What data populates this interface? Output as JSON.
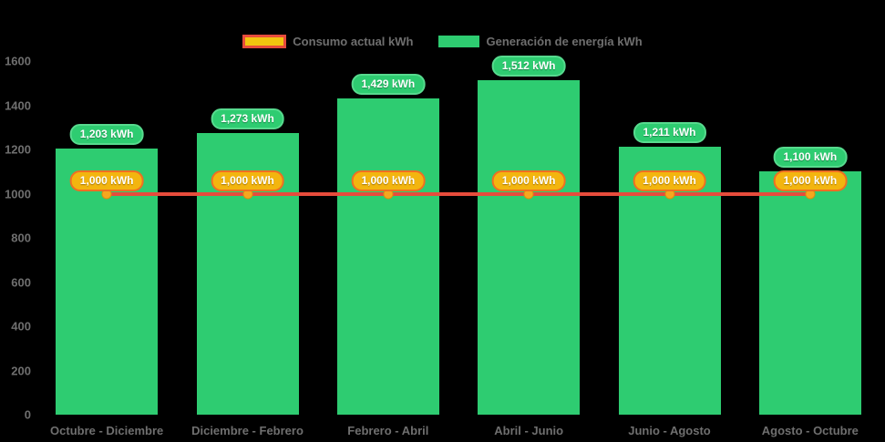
{
  "legend": {
    "items": [
      {
        "label": "Consumo actual kWh",
        "swatch": "consumo"
      },
      {
        "label": "Generación de energía kWh",
        "swatch": "generacion"
      }
    ]
  },
  "colors": {
    "background": "#000000",
    "bar": "#2ecc71",
    "bar_label_bg": "#2ecc71",
    "bar_label_border": "#57da8e",
    "line": "#e74c3c",
    "marker": "#f5a71f",
    "line_label_bg": "#f3b50f",
    "line_label_border": "#ee6f23",
    "axis_text": "#6f6f6f",
    "data_label_text": "#ffffff"
  },
  "chart_data": {
    "type": "bar",
    "subtype": "bar+line-combo",
    "categories": [
      "Octubre - Diciembre",
      "Diciembre - Febrero",
      "Febrero - Abril",
      "Abril - Junio",
      "Junio - Agosto",
      "Agosto - Octubre"
    ],
    "series": [
      {
        "name": "Generación de energía kWh",
        "type": "bar",
        "color": "#2ecc71",
        "values": [
          1203,
          1273,
          1429,
          1512,
          1211,
          1100
        ],
        "labels": [
          "1,203 kWh",
          "1,273 kWh",
          "1,429 kWh",
          "1,512 kWh",
          "1,211 kWh",
          "1,100 kWh"
        ]
      },
      {
        "name": "Consumo actual kWh",
        "type": "line",
        "color": "#e74c3c",
        "values": [
          1000,
          1000,
          1000,
          1000,
          1000,
          1000
        ],
        "labels": [
          "1,000 kWh",
          "1,000 kWh",
          "1,000 kWh",
          "1,000 kWh",
          "1,000 kWh",
          "1,000 kWh"
        ]
      }
    ],
    "yaxis": {
      "min": 0,
      "max": 1600,
      "step": 200,
      "tick_labels": [
        "0",
        "200",
        "400",
        "600",
        "800",
        "1000",
        "1200",
        "1400",
        "1600"
      ]
    },
    "xlabel": "",
    "ylabel": "",
    "title": "",
    "legend_position": "top",
    "grid": false
  }
}
